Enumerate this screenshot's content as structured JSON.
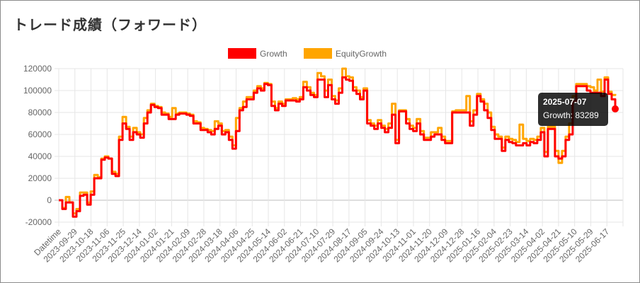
{
  "page": {
    "title": "トレード成績（フォワード）"
  },
  "tooltip": {
    "date": "2025-07-07",
    "label": "Growth: 83289"
  },
  "chart_data": {
    "type": "line",
    "legend_position": "top",
    "grid": true,
    "ylim": [
      -20000,
      120000
    ],
    "y_ticks": [
      -20000,
      0,
      20000,
      40000,
      60000,
      80000,
      100000,
      120000
    ],
    "x_tick_labels": [
      "Datetime",
      "2023-09-29",
      "2023-10-18",
      "2023-11-06",
      "2023-11-25",
      "2023-12-14",
      "2024-01-02",
      "2024-01-21",
      "2024-02-09",
      "2024-02-28",
      "2024-03-18",
      "2024-04-06",
      "2024-04-25",
      "2024-05-14",
      "2024-06-02",
      "2024-06-21",
      "2024-07-10",
      "2024-07-29",
      "2024-08-17",
      "2024-09-05",
      "2024-09-24",
      "2024-10-13",
      "2024-11-01",
      "2024-11-20",
      "2024-12-09",
      "2024-12-28",
      "2025-01-16",
      "2025-02-04",
      "2025-02-23",
      "2025-03-14",
      "2025-04-02",
      "2025-04-21",
      "2025-05-10",
      "2025-05-29",
      "2025-06-17"
    ],
    "series": [
      {
        "name": "Growth",
        "color": "#ff0000",
        "values": [
          0,
          -8000,
          -2000,
          -2000,
          -15000,
          -10000,
          4000,
          5000,
          -4000,
          5000,
          20000,
          20000,
          37000,
          39000,
          38000,
          24000,
          22000,
          55000,
          70000,
          65000,
          55000,
          62000,
          60000,
          57000,
          70000,
          80000,
          87000,
          85000,
          84000,
          78000,
          78000,
          74000,
          74000,
          78000,
          79000,
          79000,
          78000,
          77000,
          70000,
          70000,
          64000,
          64000,
          62000,
          60000,
          65000,
          68000,
          60000,
          62000,
          55000,
          47000,
          63000,
          82000,
          85000,
          92000,
          92000,
          98000,
          102000,
          100000,
          106000,
          105000,
          86000,
          82000,
          88000,
          86000,
          91000,
          91000,
          91000,
          90000,
          92000,
          103000,
          100000,
          96000,
          94000,
          110000,
          110000,
          94000,
          105000,
          92000,
          88000,
          98000,
          112000,
          110000,
          109000,
          100000,
          97000,
          92000,
          100000,
          70000,
          68000,
          65000,
          70000,
          66000,
          62000,
          66000,
          78000,
          52000,
          81000,
          81000,
          70000,
          65000,
          63000,
          70000,
          60000,
          55000,
          55000,
          58000,
          60000,
          60000,
          55000,
          52000,
          52000,
          80000,
          80000,
          80000,
          80000,
          80000,
          68000,
          78000,
          95000,
          90000,
          82000,
          75000,
          64000,
          56000,
          56000,
          45000,
          55000,
          53000,
          52000,
          50000,
          50000,
          52000,
          50000,
          53000,
          52000,
          55000,
          62000,
          40000,
          65000,
          65000,
          40000,
          38000,
          40000,
          55000,
          60000,
          90000,
          104000,
          104000,
          104000,
          100000,
          98000,
          98000,
          98000,
          95000,
          110000,
          97000,
          92000,
          83289
        ]
      },
      {
        "name": "EquityGrowth",
        "color": "#ffa500",
        "values": [
          0,
          -7000,
          3000,
          -2000,
          -12000,
          -8000,
          7000,
          7000,
          -2000,
          8000,
          23000,
          21000,
          38000,
          40000,
          38000,
          26000,
          24000,
          58000,
          76000,
          67000,
          58000,
          66000,
          62000,
          60000,
          75000,
          82000,
          88000,
          86000,
          85000,
          80000,
          79000,
          76000,
          84000,
          79000,
          80000,
          80000,
          79000,
          78000,
          72000,
          71000,
          66000,
          65000,
          64000,
          63000,
          72000,
          70000,
          63000,
          64000,
          58000,
          50000,
          75000,
          84000,
          90000,
          94000,
          94000,
          100000,
          104000,
          102000,
          107000,
          106000,
          90000,
          84000,
          90000,
          88000,
          92000,
          92000,
          93000,
          92000,
          94000,
          108000,
          103000,
          98000,
          96000,
          116000,
          113000,
          100000,
          110000,
          95000,
          91000,
          102000,
          120000,
          113000,
          112000,
          103000,
          100000,
          94000,
          102000,
          73000,
          70000,
          68000,
          73000,
          68000,
          65000,
          70000,
          88000,
          55000,
          82000,
          82000,
          74000,
          68000,
          66000,
          74000,
          63000,
          57000,
          57000,
          62000,
          62000,
          66000,
          58000,
          54000,
          54000,
          81000,
          82000,
          82000,
          82000,
          95000,
          72000,
          82000,
          97000,
          92000,
          88000,
          80000,
          67000,
          60000,
          58000,
          48000,
          58000,
          56000,
          55000,
          53000,
          69000,
          56000,
          54000,
          56000,
          55000,
          58000,
          66000,
          44000,
          67000,
          67000,
          45000,
          34000,
          45000,
          58000,
          70000,
          95000,
          106000,
          106000,
          106000,
          104000,
          103000,
          100000,
          110000,
          99000,
          112000,
          99000,
          96000,
          97000
        ]
      }
    ]
  }
}
